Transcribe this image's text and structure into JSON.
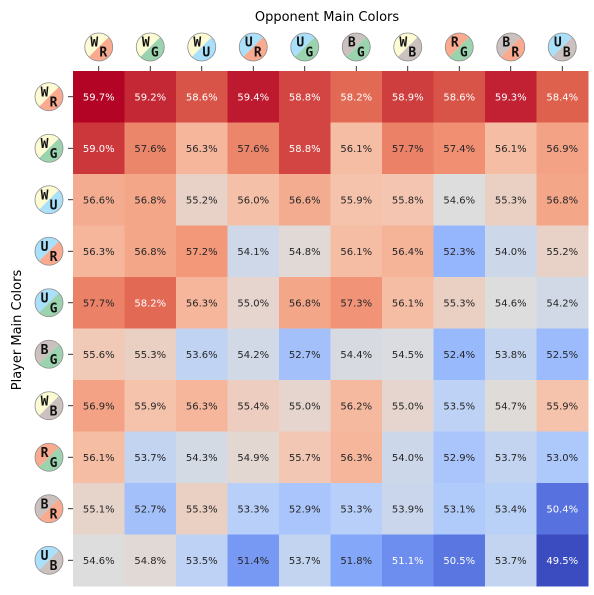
{
  "chart_data": {
    "type": "heatmap",
    "title": "",
    "xlabel": "Opponent Main Colors",
    "ylabel": "Player Main Colors",
    "colormap": "coolwarm",
    "value_range": [
      49.5,
      59.7
    ],
    "value_suffix": "%",
    "grid": false,
    "x_categories": [
      "WR",
      "WG",
      "WU",
      "UR",
      "UG",
      "BG",
      "WB",
      "RG",
      "BR",
      "UB"
    ],
    "y_categories": [
      "WR",
      "WG",
      "WU",
      "UR",
      "UG",
      "BG",
      "WB",
      "RG",
      "BR",
      "UB"
    ],
    "values": [
      [
        59.7,
        59.2,
        58.6,
        59.4,
        58.8,
        58.2,
        58.9,
        58.6,
        59.3,
        58.4
      ],
      [
        59.0,
        57.6,
        56.3,
        57.6,
        58.8,
        56.1,
        57.7,
        57.4,
        56.1,
        56.9
      ],
      [
        56.6,
        56.8,
        55.2,
        56.0,
        56.6,
        55.9,
        55.8,
        54.6,
        55.3,
        56.8
      ],
      [
        56.3,
        56.8,
        57.2,
        54.1,
        54.8,
        56.1,
        56.4,
        52.3,
        54.0,
        55.2
      ],
      [
        57.7,
        58.2,
        56.3,
        55.0,
        56.8,
        57.3,
        56.1,
        55.3,
        54.6,
        54.2
      ],
      [
        55.6,
        55.3,
        53.6,
        54.2,
        52.7,
        54.4,
        54.5,
        52.4,
        53.8,
        52.5
      ],
      [
        56.9,
        55.9,
        56.3,
        55.4,
        55.0,
        56.2,
        55.0,
        53.5,
        54.7,
        55.9
      ],
      [
        56.1,
        53.7,
        54.3,
        54.9,
        55.7,
        56.3,
        54.0,
        52.9,
        53.7,
        53.0
      ],
      [
        55.1,
        52.7,
        55.3,
        53.3,
        52.9,
        53.3,
        53.9,
        53.1,
        53.4,
        50.4
      ],
      [
        54.6,
        54.8,
        53.5,
        51.4,
        53.7,
        51.8,
        51.1,
        50.5,
        53.7,
        49.5
      ]
    ]
  },
  "mana_colors": {
    "W": "#fdfbd3",
    "U": "#aae0fa",
    "B": "#cbc2bf",
    "R": "#f9aa8f",
    "G": "#9bd3ae"
  }
}
